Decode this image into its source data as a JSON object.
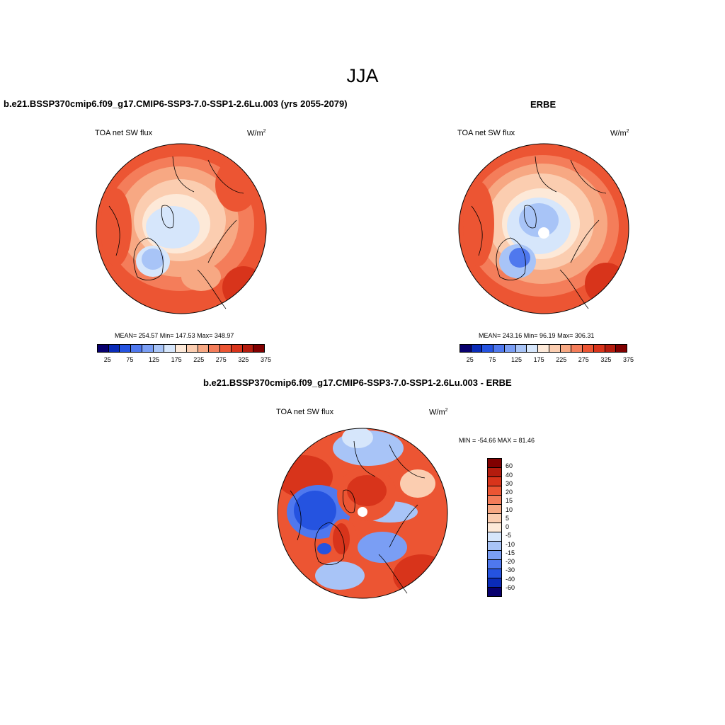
{
  "title": "JJA",
  "panels": [
    {
      "heading": "b.e21.BSSP370cmip6.f09_g17.CMIP6-SSP3-7.0-SSP1-2.6Lu.003 (yrs 2055-2079)",
      "left_label": "TOA net SW flux",
      "units": "W/m",
      "units_exp": "2",
      "stats": "MEAN= 254.57  Min= 147.53  Max= 348.97"
    },
    {
      "heading": "ERBE",
      "left_label": "TOA net SW flux",
      "units": "W/m",
      "units_exp": "2",
      "stats": "MEAN= 243.16  Min=  96.19  Max= 306.31"
    },
    {
      "heading": "b.e21.BSSP370cmip6.f09_g17.CMIP6-SSP3-7.0-SSP1-2.6Lu.003 - ERBE",
      "left_label": "TOA net SW flux",
      "units": "W/m",
      "units_exp": "2",
      "stats": "MIN = -54.66 MAX =  81.46"
    }
  ],
  "abs_colorbar": {
    "colors": [
      "#08006e",
      "#0a2bb8",
      "#2553e0",
      "#4f78ee",
      "#7a9ef4",
      "#a8c4f7",
      "#d6e6fb",
      "#fde9d8",
      "#fbcdb0",
      "#f7a883",
      "#f47d5a",
      "#ec5533",
      "#d8341b",
      "#b41c0e",
      "#800000"
    ],
    "tick_labels": [
      "25",
      "75",
      "125",
      "175",
      "225",
      "275",
      "325",
      "375"
    ]
  },
  "diff_colorbar": {
    "colors": [
      "#800000",
      "#b41c0e",
      "#d8341b",
      "#ec5533",
      "#f47d5a",
      "#f7a883",
      "#fbcdb0",
      "#fde9d8",
      "#d6e6fb",
      "#a8c4f7",
      "#7a9ef4",
      "#4f78ee",
      "#2553e0",
      "#0a2bb8",
      "#08006e"
    ],
    "tick_labels": [
      "60",
      "40",
      "30",
      "20",
      "15",
      "10",
      "5",
      "0",
      "-5",
      "-10",
      "-15",
      "-20",
      "-30",
      "-40",
      "-60"
    ]
  }
}
